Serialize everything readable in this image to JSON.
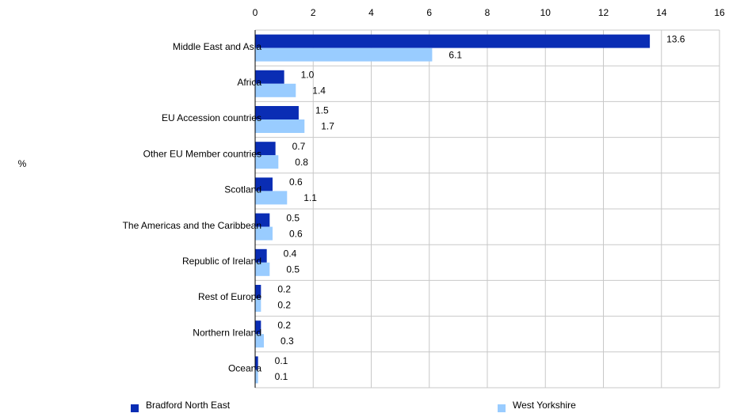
{
  "chart_data": {
    "type": "bar",
    "orientation": "horizontal",
    "y_label": "%",
    "categories": [
      "Middle East and Asia",
      "Africa",
      "EU Accession countries",
      "Other EU Member countries",
      "Scotland",
      "The Americas and the Caribbean",
      "Republic of Ireland",
      "Rest of Europe",
      "Northern Ireland",
      "Oceana"
    ],
    "series": [
      {
        "name": "Bradford North East",
        "color": "#0a2db4",
        "values": [
          13.6,
          1.0,
          1.5,
          0.7,
          0.6,
          0.5,
          0.4,
          0.2,
          0.2,
          0.1
        ],
        "value_labels": [
          "13.6",
          "1.0",
          "1.5",
          "0.7",
          "0.6",
          "0.5",
          "0.4",
          "0.2",
          "0.2",
          "0.1"
        ]
      },
      {
        "name": "West Yorkshire",
        "color": "#99ccff",
        "values": [
          6.1,
          1.4,
          1.7,
          0.8,
          1.1,
          0.6,
          0.5,
          0.2,
          0.3,
          0.1
        ],
        "value_labels": [
          "6.1",
          "1.4",
          "1.7",
          "0.8",
          "1.1",
          "0.6",
          "0.5",
          "0.2",
          "0.3",
          "0.1"
        ]
      }
    ],
    "xlim": [
      0,
      16
    ],
    "xticks": [
      0,
      2,
      4,
      6,
      8,
      10,
      12,
      14,
      16
    ],
    "grid": true
  }
}
